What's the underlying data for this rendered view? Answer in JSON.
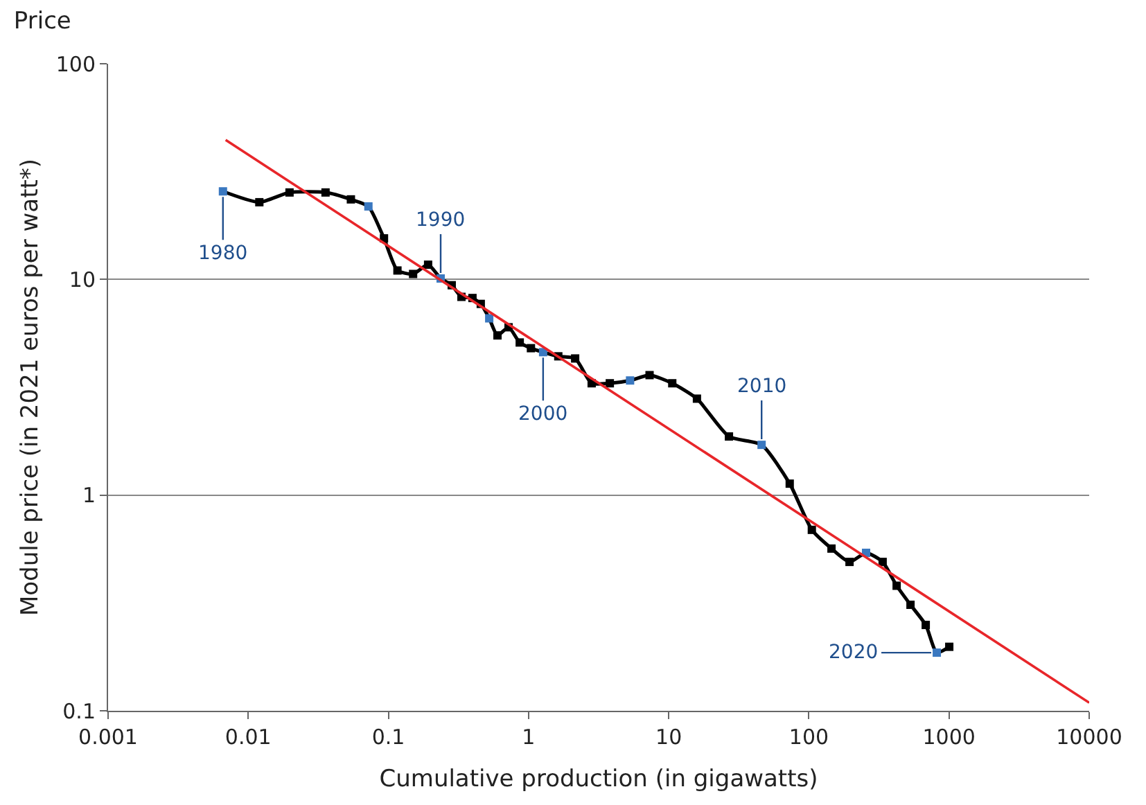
{
  "chart_data": {
    "type": "line",
    "title": "Price",
    "xlabel": "Cumulative production (in gigawatts)",
    "ylabel": "Module price (in 2021 euros per watt*)",
    "log": "xy",
    "grid": "y",
    "marker": "square",
    "line_style": "solid",
    "xlim": [
      0.001,
      10000
    ],
    "xticks": [
      0.001,
      0.01,
      0.1,
      1,
      10,
      100,
      1000,
      10000
    ],
    "ylim": [
      0.1,
      100
    ],
    "yticks": [
      0.1,
      1,
      10,
      100
    ],
    "series": [
      {
        "color": "#000000",
        "x": [
          0.0066,
          0.012,
          0.0197,
          0.0356,
          0.054,
          0.072,
          0.093,
          0.116,
          0.15,
          0.192,
          0.236,
          0.283,
          0.332,
          0.398,
          0.456,
          0.524,
          0.6,
          0.72,
          0.865,
          1.04,
          1.27,
          1.63,
          2.15,
          2.82,
          3.8,
          5.3,
          7.3,
          10.6,
          15.9,
          26.9,
          46,
          73,
          105,
          145,
          195,
          256,
          336,
          423,
          531,
          682,
          818,
          1004
        ],
        "values": [
          25.6,
          22.8,
          25.3,
          25.3,
          23.5,
          21.8,
          15.5,
          11.0,
          10.6,
          11.7,
          10.1,
          9.4,
          8.3,
          8.2,
          7.7,
          6.6,
          5.5,
          6.0,
          5.1,
          4.8,
          4.6,
          4.4,
          4.3,
          3.3,
          3.3,
          3.4,
          3.6,
          3.3,
          2.8,
          1.87,
          1.71,
          1.13,
          0.69,
          0.565,
          0.49,
          0.54,
          0.49,
          0.38,
          0.31,
          0.25,
          0.186,
          0.198
        ],
        "colors": [
          "#3a78c0",
          "#000000",
          "#000000",
          "#000000",
          "#000000",
          "#3a78c0",
          "#000000",
          "#000000",
          "#000000",
          "#000000",
          "#3a78c0",
          "#000000",
          "#000000",
          "#000000",
          "#000000",
          "#3a78c0",
          "#000000",
          "#000000",
          "#000000",
          "#000000",
          "#3a78c0",
          "#000000",
          "#000000",
          "#000000",
          "#000000",
          "#3a78c0",
          "#000000",
          "#000000",
          "#000000",
          "#000000",
          "#3a78c0",
          "#000000",
          "#000000",
          "#000000",
          "#000000",
          "#3a78c0",
          "#000000",
          "#000000",
          "#000000",
          "#000000",
          "#3a78c0",
          "#000000"
        ]
      },
      {
        "type": "line",
        "color": "#e8262a",
        "marker": "none",
        "x": [
          0.0069,
          10000
        ],
        "values": [
          44.3,
          0.109
        ]
      }
    ],
    "annotations": [
      {
        "text": "1980",
        "x": 0.0066,
        "y": 25.6
      },
      {
        "text": "1990",
        "x": 0.236,
        "y": 10.1
      },
      {
        "text": "2000",
        "x": 1.27,
        "y": 4.6
      },
      {
        "text": "2010",
        "x": 46,
        "y": 1.71
      },
      {
        "text": "2020",
        "x": 818,
        "y": 0.186
      }
    ]
  }
}
